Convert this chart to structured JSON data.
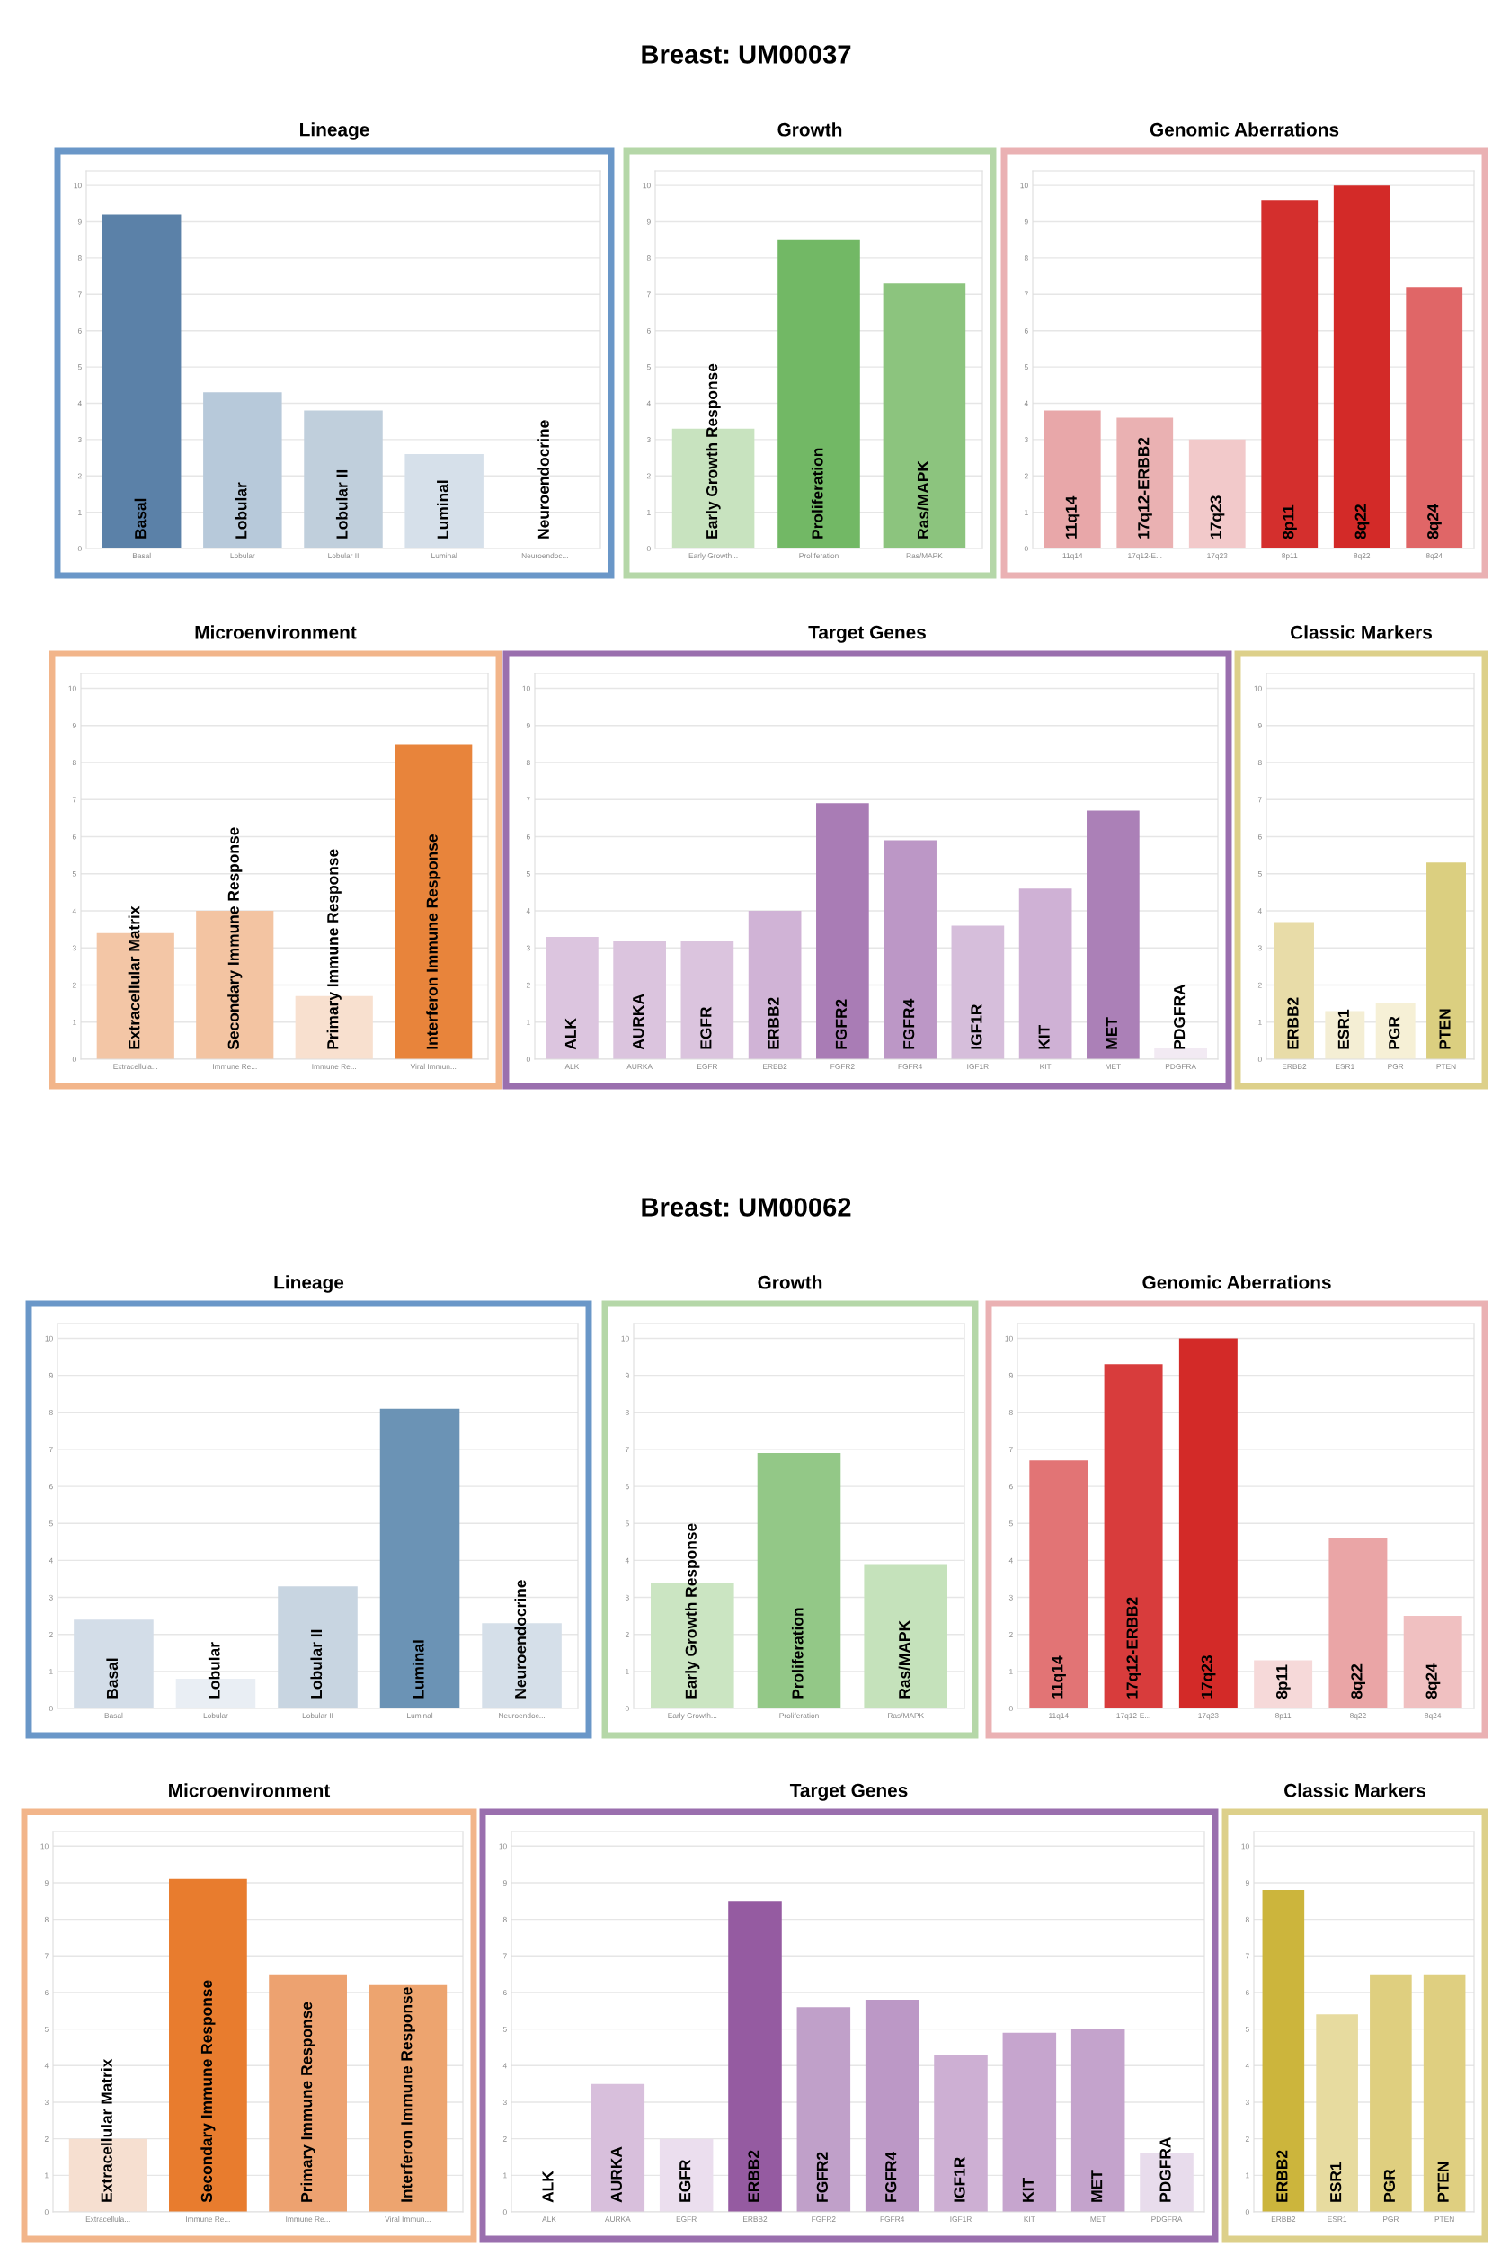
{
  "chart_data": [
    {
      "type": "bar",
      "title": "Lineage",
      "annotations": [
        "Breast: UM00037",
        "Basal",
        "Lobular",
        "Lobular II",
        "Luminal",
        "Neuroendocrine"
      ],
      "categories": [
        "Basal",
        "Lobular",
        "Lobular II",
        "Luminal",
        "Neuroendoc..."
      ],
      "values": [
        9.2,
        4.3,
        3.8,
        2.6,
        0
      ],
      "colors": [
        "#5b81a8",
        "#b7c9da",
        "#c0cfdc",
        "#d6e0ea",
        "#e8eef4"
      ],
      "ylim": [
        0,
        10.4
      ],
      "yticks": [
        0,
        1,
        2,
        3,
        4,
        5,
        6,
        7,
        8,
        9,
        10
      ],
      "grid": "y"
    },
    {
      "type": "bar",
      "title": "Growth",
      "annotations": [
        "Early Growth Response",
        "Proliferation",
        "Ras/MAPK"
      ],
      "categories": [
        "Early Growth...",
        "Proliferation",
        "Ras/MAPK"
      ],
      "values": [
        3.3,
        8.5,
        7.3
      ],
      "colors": [
        "#c8e3bf",
        "#72b865",
        "#8cc47e"
      ],
      "ylim": [
        0,
        10.4
      ],
      "yticks": [
        0,
        1,
        2,
        3,
        4,
        5,
        6,
        7,
        8,
        9,
        10
      ],
      "grid": "y"
    },
    {
      "type": "bar",
      "title": "Genomic Aberrations",
      "annotations": [
        "11q14",
        "17q12-ERBB2",
        "17q23",
        "8p11",
        "8q22",
        "8q24"
      ],
      "categories": [
        "11q14",
        "17q12-E...",
        "17q23",
        "8p11",
        "8q22",
        "8q24"
      ],
      "values": [
        3.8,
        3.6,
        3.0,
        9.6,
        10.0,
        7.2
      ],
      "colors": [
        "#e8a7a9",
        "#eab1b2",
        "#f2c9ca",
        "#d42f2d",
        "#d32a28",
        "#e06667"
      ],
      "ylim": [
        0,
        10.4
      ],
      "yticks": [
        0,
        1,
        2,
        3,
        4,
        5,
        6,
        7,
        8,
        9,
        10
      ],
      "grid": "y"
    },
    {
      "type": "bar",
      "title": "Microenvironment",
      "annotations": [
        "Extracellular Matrix",
        "Secondary Immune Response",
        "Primary Immune Response",
        "Interferon Immune Response"
      ],
      "categories": [
        "Extracellula...",
        "Immune Re...",
        "Immune Re...",
        "Viral Immun..."
      ],
      "values": [
        3.4,
        4.0,
        1.7,
        8.5
      ],
      "colors": [
        "#f3c6a6",
        "#f3c4a2",
        "#f8e0cf",
        "#e8843b"
      ],
      "ylim": [
        0,
        10.4
      ],
      "yticks": [
        0,
        1,
        2,
        3,
        4,
        5,
        6,
        7,
        8,
        9,
        10
      ],
      "grid": "y"
    },
    {
      "type": "bar",
      "title": "Target Genes",
      "annotations": [
        "ALK",
        "AURKA",
        "EGFR",
        "ERBB2",
        "FGFR2",
        "FGFR4",
        "IGF1R",
        "KIT",
        "MET",
        "PDGFRA"
      ],
      "categories": [
        "ALK",
        "AURKA",
        "EGFR",
        "ERBB2",
        "FGFR2",
        "FGFR4",
        "IGF1R",
        "KIT",
        "MET",
        "PDGFRA"
      ],
      "values": [
        3.3,
        3.2,
        3.2,
        4.0,
        6.9,
        5.9,
        3.6,
        4.6,
        6.7,
        0.3
      ],
      "colors": [
        "#dcc5df",
        "#dbc4de",
        "#dbc4de",
        "#d0b3d6",
        "#a97cb5",
        "#bc97c6",
        "#d6bedb",
        "#cfb1d5",
        "#ab80b7",
        "#f2eaf3"
      ],
      "ylim": [
        0,
        10.4
      ],
      "yticks": [
        0,
        1,
        2,
        3,
        4,
        5,
        6,
        7,
        8,
        9,
        10
      ],
      "grid": "y"
    },
    {
      "type": "bar",
      "title": "Classic Markers",
      "annotations": [
        "ERBB2",
        "ESR1",
        "PGR",
        "PTEN"
      ],
      "categories": [
        "ERBB2",
        "ESR1",
        "PGR",
        "PTEN"
      ],
      "values": [
        3.7,
        1.3,
        1.5,
        5.3
      ],
      "colors": [
        "#e8dca8",
        "#f4eed4",
        "#f6f0d6",
        "#dbcf80"
      ],
      "ylim": [
        0,
        10.4
      ],
      "yticks": [
        0,
        1,
        2,
        3,
        4,
        5,
        6,
        7,
        8,
        9,
        10
      ],
      "grid": "y"
    },
    {
      "type": "bar",
      "title": "Lineage",
      "annotations": [
        "Breast: UM00062",
        "Basal",
        "Lobular",
        "Lobular II",
        "Luminal",
        "Neuroendocrine"
      ],
      "categories": [
        "Basal",
        "Lobular",
        "Lobular II",
        "Luminal",
        "Neuroendoc..."
      ],
      "values": [
        2.4,
        0.8,
        3.3,
        8.1,
        2.3
      ],
      "colors": [
        "#d3dde8",
        "#e9eef4",
        "#c8d5e1",
        "#6b93b5",
        "#d5dfe9"
      ],
      "ylim": [
        0,
        10.4
      ],
      "yticks": [
        0,
        1,
        2,
        3,
        4,
        5,
        6,
        7,
        8,
        9,
        10
      ],
      "grid": "y"
    },
    {
      "type": "bar",
      "title": "Growth",
      "annotations": [
        "Early Growth Response",
        "Proliferation",
        "Ras/MAPK"
      ],
      "categories": [
        "Early Growth...",
        "Proliferation",
        "Ras/MAPK"
      ],
      "values": [
        3.4,
        6.9,
        3.9
      ],
      "colors": [
        "#cbe5c2",
        "#93c887",
        "#c5e2bb"
      ],
      "ylim": [
        0,
        10.4
      ],
      "yticks": [
        0,
        1,
        2,
        3,
        4,
        5,
        6,
        7,
        8,
        9,
        10
      ],
      "grid": "y"
    },
    {
      "type": "bar",
      "title": "Genomic Aberrations",
      "annotations": [
        "11q14",
        "17q12-ERBB2",
        "17q23",
        "8p11",
        "8q22",
        "8q24"
      ],
      "categories": [
        "11q14",
        "17q12-E...",
        "17q23",
        "8p11",
        "8q22",
        "8q24"
      ],
      "values": [
        6.7,
        9.3,
        10.0,
        1.3,
        4.6,
        2.5
      ],
      "colors": [
        "#e27475",
        "#d83c3c",
        "#d32a28",
        "#f6d9d9",
        "#eaa5a6",
        "#f0c0c1"
      ],
      "ylim": [
        0,
        10.4
      ],
      "yticks": [
        0,
        1,
        2,
        3,
        4,
        5,
        6,
        7,
        8,
        9,
        10
      ],
      "grid": "y"
    },
    {
      "type": "bar",
      "title": "Microenvironment",
      "annotations": [
        "Extracellular Matrix",
        "Secondary Immune Response",
        "Primary Immune Response",
        "Interferon Immune Response"
      ],
      "categories": [
        "Extracellula...",
        "Immune Re...",
        "Immune Re...",
        "Viral Immun..."
      ],
      "values": [
        2.0,
        9.1,
        6.5,
        6.2
      ],
      "colors": [
        "#f6dfd0",
        "#e87c2e",
        "#eda270",
        "#eda46f"
      ],
      "ylim": [
        0,
        10.4
      ],
      "yticks": [
        0,
        1,
        2,
        3,
        4,
        5,
        6,
        7,
        8,
        9,
        10
      ],
      "grid": "y"
    },
    {
      "type": "bar",
      "title": "Target Genes",
      "annotations": [
        "ALK",
        "AURKA",
        "EGFR",
        "ERBB2",
        "FGFR2",
        "FGFR4",
        "IGF1R",
        "KIT",
        "MET",
        "PDGFRA"
      ],
      "categories": [
        "ALK",
        "AURKA",
        "EGFR",
        "ERBB2",
        "FGFR2",
        "FGFR4",
        "IGF1R",
        "KIT",
        "MET",
        "PDGFRA"
      ],
      "values": [
        null,
        3.5,
        2.0,
        8.5,
        5.6,
        5.8,
        4.3,
        4.9,
        5.0,
        1.6
      ],
      "colors": [
        "#f4eef5",
        "#d8bfdc",
        "#ebdeee",
        "#955ba1",
        "#c0a0c9",
        "#bc98c6",
        "#cdafd3",
        "#c6a5ce",
        "#c4a3cc",
        "#e8dcec"
      ],
      "ylim": [
        0,
        10.4
      ],
      "yticks": [
        0,
        1,
        2,
        3,
        4,
        5,
        6,
        7,
        8,
        9,
        10
      ],
      "grid": "y"
    },
    {
      "type": "bar",
      "title": "Classic Markers",
      "annotations": [
        "ERBB2",
        "ESR1",
        "PGR",
        "PTEN"
      ],
      "categories": [
        "ERBB2",
        "ESR1",
        "PGR",
        "PTEN"
      ],
      "values": [
        8.8,
        5.4,
        6.5,
        6.5
      ],
      "colors": [
        "#ccb53c",
        "#e7db9f",
        "#dfcf7f",
        "#dfcf80"
      ],
      "ylim": [
        0,
        10.4
      ],
      "yticks": [
        0,
        1,
        2,
        3,
        4,
        5,
        6,
        7,
        8,
        9,
        10
      ],
      "grid": "y"
    }
  ]
}
